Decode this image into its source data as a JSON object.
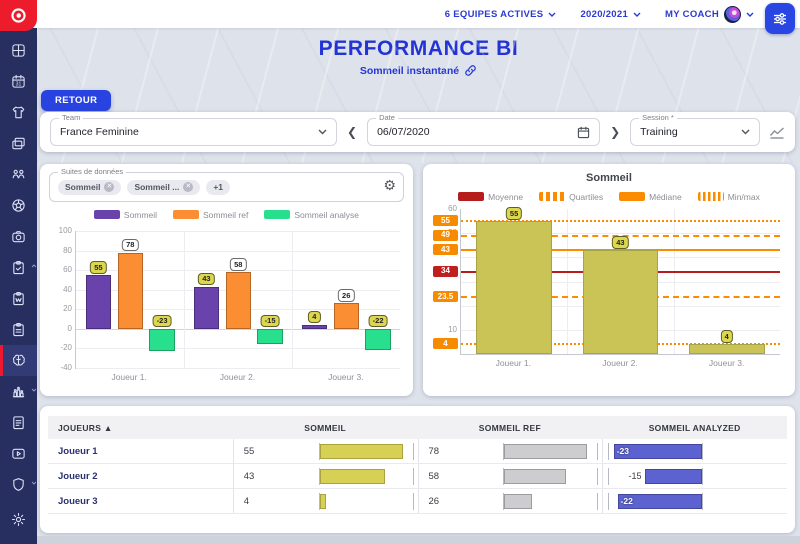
{
  "topbar": {
    "menus": [
      {
        "label": "6 EQUIPES ACTIVES"
      },
      {
        "label": "2020/2021"
      },
      {
        "label": "MY COACH",
        "has_avatar": true
      }
    ]
  },
  "header": {
    "title": "PERFORMANCE BI",
    "subtitle": "Sommeil instantané"
  },
  "back_button_label": "RETOUR",
  "filter_bar": {
    "team": {
      "label": "Team",
      "value": "France Feminine"
    },
    "date": {
      "label": "Date",
      "value": "06/07/2020"
    },
    "session": {
      "label": "Session *",
      "value": "Training"
    }
  },
  "left_panel": {
    "fieldset_label": "Suites de données",
    "chips": [
      {
        "label": "Sommeil",
        "removable": true
      },
      {
        "label": "Sommeil ...",
        "removable": true
      },
      {
        "label": "+1",
        "removable": false
      }
    ]
  },
  "sidebar": {
    "items": [
      {
        "icon": "dashboard"
      },
      {
        "icon": "calendar"
      },
      {
        "icon": "jersey"
      },
      {
        "icon": "gallery"
      },
      {
        "icon": "team"
      },
      {
        "icon": "soccer-ball"
      },
      {
        "icon": "camera"
      },
      {
        "icon": "clipboard-check",
        "caret": "up"
      },
      {
        "icon": "clipboard-notes"
      },
      {
        "icon": "clipboard-list"
      },
      {
        "icon": "brain",
        "active": true
      },
      {
        "icon": "stats",
        "caret": "down"
      },
      {
        "icon": "document"
      },
      {
        "icon": "video"
      },
      {
        "icon": "shield",
        "caret": "down"
      }
    ],
    "bottom_item": {
      "icon": "settings"
    }
  },
  "colors": {
    "accent_blue": "#2639d8",
    "sidebar_navy": "#272f60",
    "logo_red": "#ec1c2d",
    "bar_purple": "#6a42ab",
    "bar_orange": "#fb8d33",
    "bar_green": "#28df8d",
    "bar_olive": "#c9c455",
    "line_red": "#b71c1c",
    "line_orange": "#fb8c00",
    "table_bar_indigo": "#5c63d1",
    "table_bar_grey": "#cdcdcf",
    "table_bar_yellow": "#d6d055"
  },
  "chart_data": [
    {
      "type": "bar",
      "title": "",
      "categories": [
        "Joueur 1.",
        "Joueur 2.",
        "Joueur 3."
      ],
      "series": [
        {
          "name": "Sommeil",
          "color": "#6a42ab",
          "badge": "yellow",
          "values": [
            55,
            43,
            4
          ]
        },
        {
          "name": "Sommeil ref",
          "color": "#fb8d33",
          "badge": "white",
          "values": [
            78,
            58,
            26
          ]
        },
        {
          "name": "Sommeil analyse",
          "color": "#28df8d",
          "badge": "yellow",
          "values": [
            -23,
            -15,
            -22
          ]
        }
      ],
      "ylim": [
        -40,
        100
      ],
      "yticks": [
        100,
        80,
        60,
        40,
        20,
        0,
        -20,
        -40
      ],
      "legend_position": "top",
      "grid": true
    },
    {
      "type": "bar",
      "title": "Sommeil",
      "categories": [
        "Joueur 1.",
        "Joueur 2.",
        "Joueur 3."
      ],
      "values": [
        55,
        43,
        4
      ],
      "bar_color": "#c9c455",
      "ylim": [
        0,
        60
      ],
      "yticks_visible": [
        60,
        50,
        10
      ],
      "reference_lines": [
        {
          "value": 55,
          "kind": "max",
          "style": "dotted",
          "color": "#fb8c00"
        },
        {
          "value": 49,
          "kind": "quartile",
          "style": "dashed",
          "color": "#fb8c00"
        },
        {
          "value": 43,
          "kind": "median",
          "style": "solid",
          "color": "#fb8c00"
        },
        {
          "value": 34,
          "kind": "mean",
          "style": "solid",
          "color": "#b71c1c"
        },
        {
          "value": 23.5,
          "kind": "quartile",
          "style": "dashed",
          "color": "#fb8c00"
        },
        {
          "value": 4,
          "kind": "min",
          "style": "dotted",
          "color": "#fb8c00"
        }
      ],
      "legend": [
        {
          "label": "Moyenne",
          "color": "#b71c1c",
          "style": "solid"
        },
        {
          "label": "Quartiles",
          "color": "#fb8c00",
          "style": "dashed"
        },
        {
          "label": "Médiane",
          "color": "#fb8c00",
          "style": "solid"
        },
        {
          "label": "Min/max",
          "color": "#fb8c00",
          "style": "dotted"
        }
      ],
      "legend_position": "top",
      "grid": true
    },
    {
      "type": "table",
      "columns": [
        {
          "label": "JOUEURS",
          "sort": "asc"
        },
        {
          "label": "SOMMEIL"
        },
        {
          "label": "SOMMEIL REF"
        },
        {
          "label": "SOMMEIL ANALYZED"
        }
      ],
      "rows": [
        {
          "player": "Joueur 1",
          "sommeil": 55,
          "sommeil_ref": 78,
          "sommeil_analyzed": -23,
          "analyzed_label_inside": true
        },
        {
          "player": "Joueur 2",
          "sommeil": 43,
          "sommeil_ref": 58,
          "sommeil_analyzed": -15,
          "analyzed_label_inside": false
        },
        {
          "player": "Joueur 3",
          "sommeil": 4,
          "sommeil_ref": 26,
          "sommeil_analyzed": -22,
          "analyzed_label_inside": true
        }
      ]
    }
  ]
}
